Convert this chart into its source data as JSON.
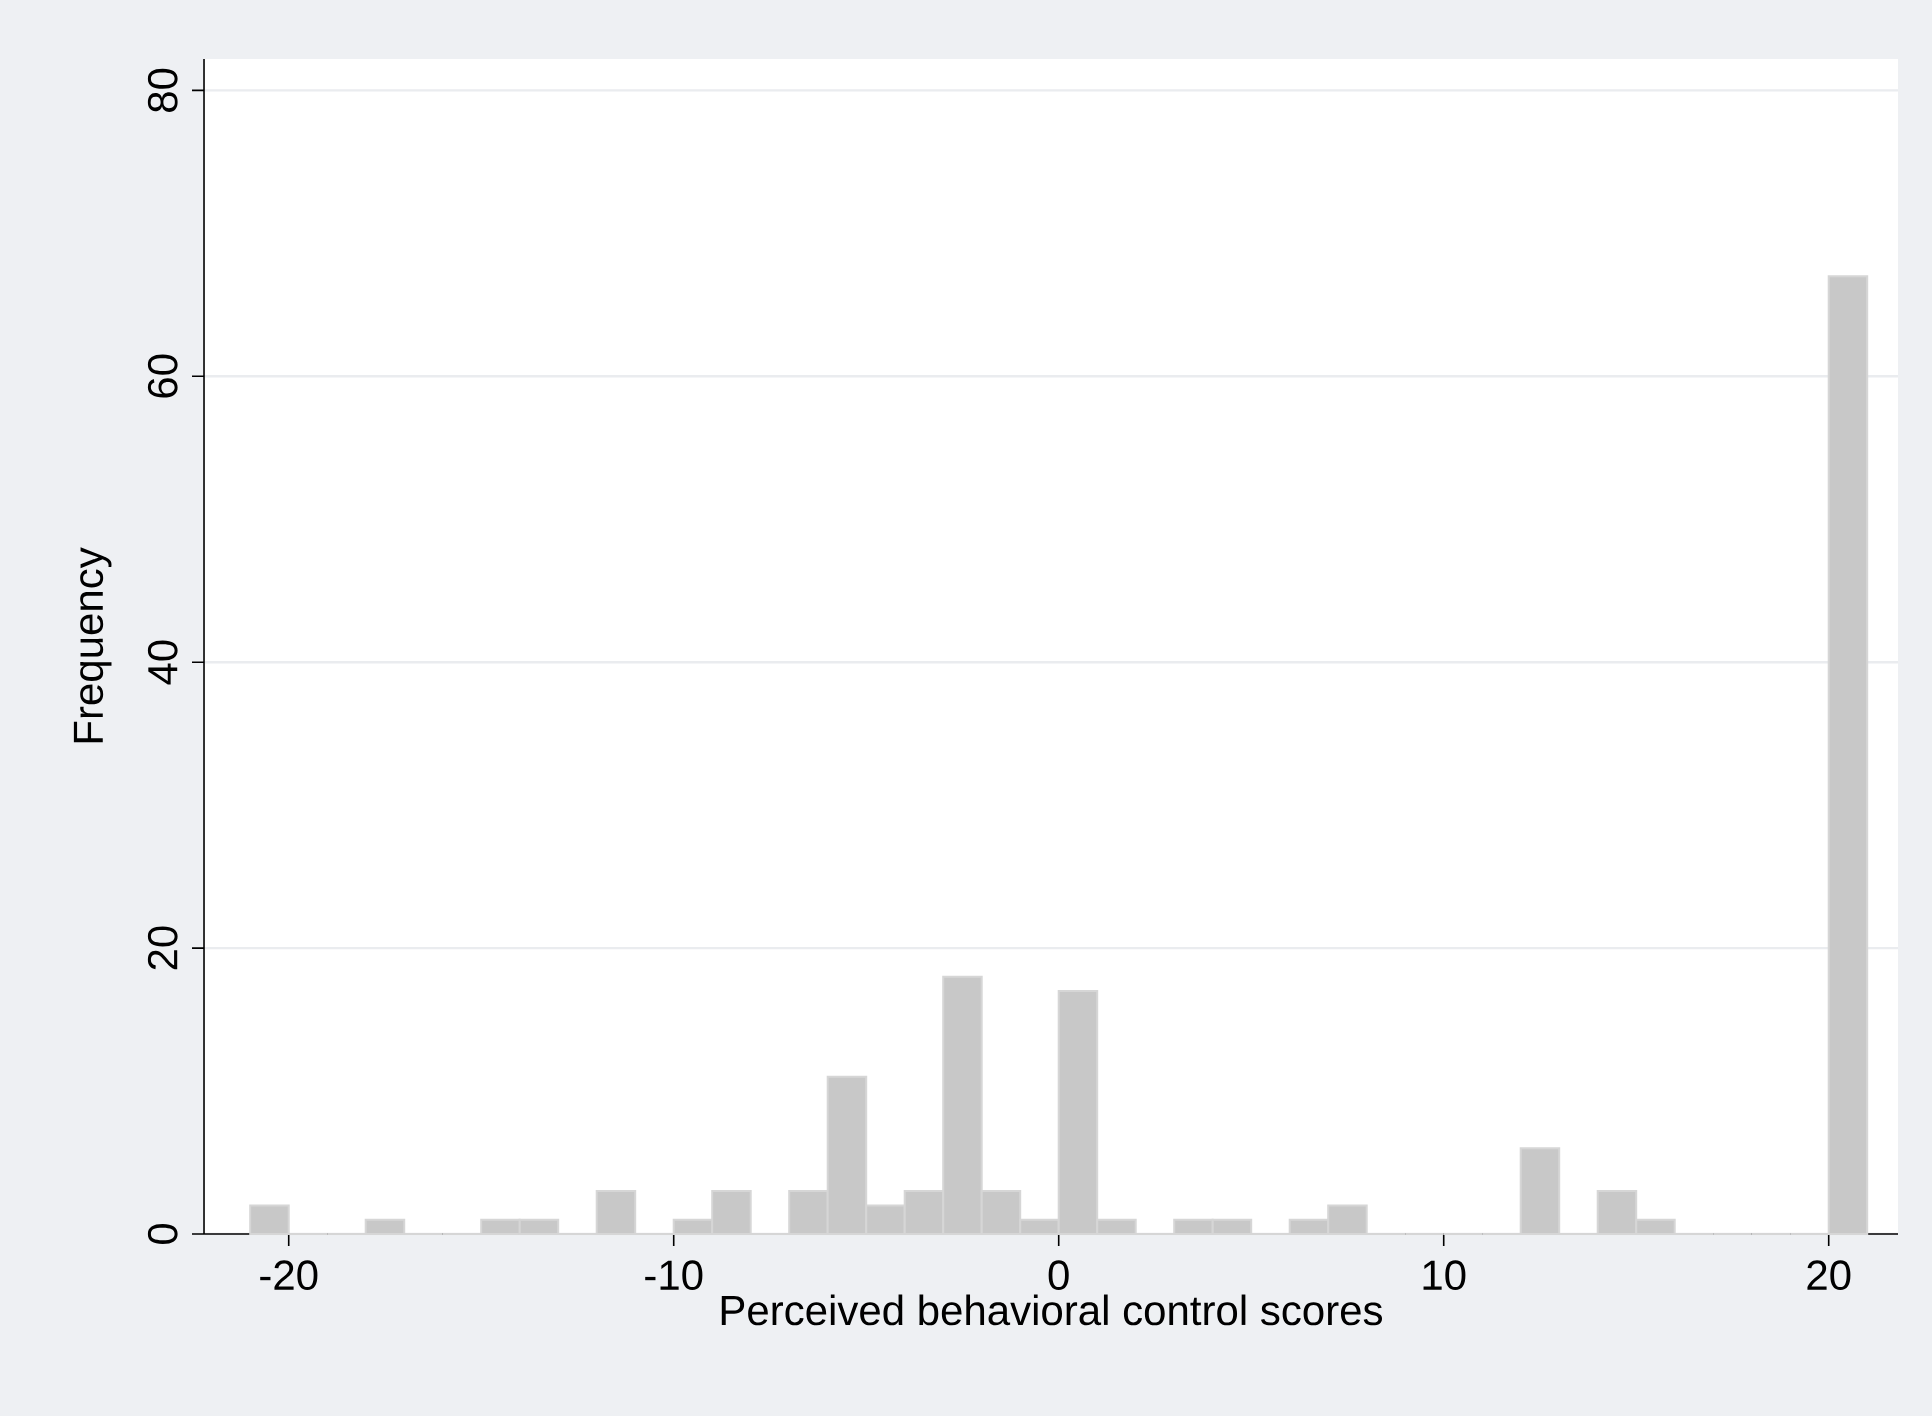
{
  "chart_data": {
    "type": "histogram",
    "xlabel": "Perceived behavioral control scores",
    "ylabel": "Frequency",
    "bins": [
      -21,
      -20,
      -19,
      -18,
      -17,
      -16,
      -15,
      -14,
      -13,
      -12,
      -11,
      -10,
      -9,
      -8,
      -7,
      -6,
      -5,
      -4,
      -3,
      -2,
      -1,
      0,
      1,
      2,
      3,
      4,
      5,
      6,
      7,
      8,
      9,
      10,
      11,
      12,
      13,
      14,
      15,
      16,
      17,
      18,
      19,
      20,
      21
    ],
    "values": [
      2,
      0,
      0,
      1,
      0,
      0,
      1,
      1,
      0,
      3,
      0,
      1,
      3,
      0,
      3,
      11,
      2,
      3,
      18,
      3,
      1,
      17,
      1,
      0,
      1,
      1,
      0,
      1,
      2,
      0,
      0,
      0,
      0,
      6,
      0,
      3,
      1,
      0,
      0,
      0,
      0,
      67
    ],
    "color": "#c8c8c8",
    "xlim": [
      -22.2,
      21.8
    ],
    "ylim": [
      0,
      82.2
    ],
    "xticks": [
      -20,
      -10,
      0,
      10,
      20
    ],
    "yticks": [
      0,
      20,
      40,
      60,
      80
    ],
    "grid": "y"
  }
}
